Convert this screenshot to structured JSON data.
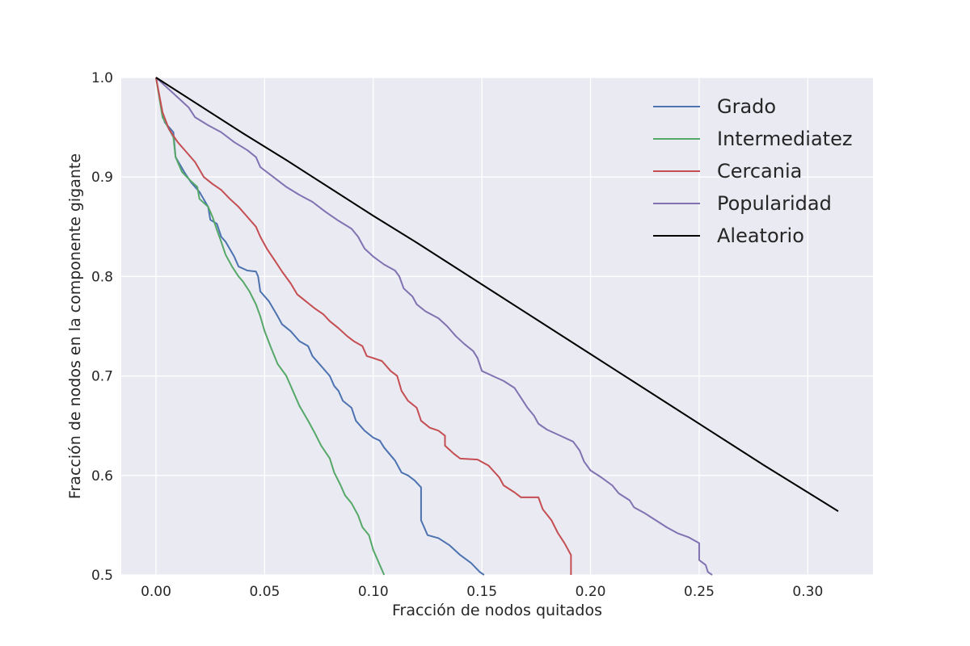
{
  "chart_data": {
    "type": "line",
    "xlabel": "Fracción de nodos quitados",
    "ylabel": "Fracción de nodos en la componente gigante",
    "xlim": [
      -0.016,
      0.33
    ],
    "ylim": [
      0.5,
      1.0
    ],
    "x_ticks": [
      0.0,
      0.05,
      0.1,
      0.15,
      0.2,
      0.25,
      0.3
    ],
    "x_tick_labels": [
      "0.00",
      "0.05",
      "0.10",
      "0.15",
      "0.20",
      "0.25",
      "0.30"
    ],
    "y_ticks": [
      0.5,
      0.6,
      0.7,
      0.8,
      0.9,
      1.0
    ],
    "y_tick_labels": [
      "0.5",
      "0.6",
      "0.7",
      "0.8",
      "0.9",
      "1.0"
    ],
    "grid": true,
    "background": "#eaeaf2",
    "legend_position": "top-right",
    "series": [
      {
        "name": "Grado",
        "color": "#4c72b0",
        "points": [
          [
            0,
            1.0
          ],
          [
            0.002,
            0.975
          ],
          [
            0.004,
            0.955
          ],
          [
            0.008,
            0.945
          ],
          [
            0.009,
            0.92
          ],
          [
            0.013,
            0.905
          ],
          [
            0.016,
            0.895
          ],
          [
            0.02,
            0.885
          ],
          [
            0.024,
            0.87
          ],
          [
            0.025,
            0.857
          ],
          [
            0.028,
            0.853
          ],
          [
            0.03,
            0.84
          ],
          [
            0.032,
            0.835
          ],
          [
            0.036,
            0.82
          ],
          [
            0.038,
            0.81
          ],
          [
            0.042,
            0.806
          ],
          [
            0.046,
            0.805
          ],
          [
            0.047,
            0.8
          ],
          [
            0.048,
            0.785
          ],
          [
            0.052,
            0.775
          ],
          [
            0.056,
            0.76
          ],
          [
            0.058,
            0.752
          ],
          [
            0.062,
            0.745
          ],
          [
            0.066,
            0.735
          ],
          [
            0.07,
            0.73
          ],
          [
            0.072,
            0.72
          ],
          [
            0.076,
            0.71
          ],
          [
            0.08,
            0.7
          ],
          [
            0.082,
            0.69
          ],
          [
            0.084,
            0.685
          ],
          [
            0.086,
            0.675
          ],
          [
            0.09,
            0.668
          ],
          [
            0.092,
            0.655
          ],
          [
            0.096,
            0.645
          ],
          [
            0.1,
            0.638
          ],
          [
            0.103,
            0.635
          ],
          [
            0.105,
            0.628
          ],
          [
            0.11,
            0.615
          ],
          [
            0.113,
            0.603
          ],
          [
            0.116,
            0.6
          ],
          [
            0.119,
            0.595
          ],
          [
            0.122,
            0.588
          ],
          [
            0.122,
            0.555
          ],
          [
            0.125,
            0.54
          ],
          [
            0.13,
            0.537
          ],
          [
            0.135,
            0.53
          ],
          [
            0.14,
            0.52
          ],
          [
            0.145,
            0.512
          ],
          [
            0.149,
            0.503
          ],
          [
            0.151,
            0.5
          ]
        ]
      },
      {
        "name": "Intermediatez",
        "color": "#55a868",
        "points": [
          [
            0,
            1.0
          ],
          [
            0.003,
            0.96
          ],
          [
            0.006,
            0.948
          ],
          [
            0.008,
            0.94
          ],
          [
            0.009,
            0.92
          ],
          [
            0.012,
            0.905
          ],
          [
            0.016,
            0.896
          ],
          [
            0.019,
            0.89
          ],
          [
            0.02,
            0.878
          ],
          [
            0.024,
            0.87
          ],
          [
            0.026,
            0.86
          ],
          [
            0.028,
            0.847
          ],
          [
            0.03,
            0.835
          ],
          [
            0.032,
            0.822
          ],
          [
            0.035,
            0.81
          ],
          [
            0.038,
            0.8
          ],
          [
            0.04,
            0.795
          ],
          [
            0.043,
            0.785
          ],
          [
            0.046,
            0.772
          ],
          [
            0.048,
            0.76
          ],
          [
            0.05,
            0.745
          ],
          [
            0.053,
            0.728
          ],
          [
            0.056,
            0.712
          ],
          [
            0.06,
            0.7
          ],
          [
            0.063,
            0.685
          ],
          [
            0.066,
            0.67
          ],
          [
            0.07,
            0.655
          ],
          [
            0.073,
            0.643
          ],
          [
            0.076,
            0.63
          ],
          [
            0.08,
            0.617
          ],
          [
            0.082,
            0.603
          ],
          [
            0.085,
            0.59
          ],
          [
            0.087,
            0.58
          ],
          [
            0.09,
            0.572
          ],
          [
            0.093,
            0.56
          ],
          [
            0.095,
            0.548
          ],
          [
            0.098,
            0.54
          ],
          [
            0.1,
            0.525
          ],
          [
            0.103,
            0.51
          ],
          [
            0.105,
            0.5
          ]
        ]
      },
      {
        "name": "Cercania",
        "color": "#c44e52",
        "points": [
          [
            0,
            1.0
          ],
          [
            0.003,
            0.965
          ],
          [
            0.006,
            0.948
          ],
          [
            0.01,
            0.935
          ],
          [
            0.014,
            0.925
          ],
          [
            0.018,
            0.915
          ],
          [
            0.022,
            0.9
          ],
          [
            0.026,
            0.893
          ],
          [
            0.03,
            0.887
          ],
          [
            0.034,
            0.878
          ],
          [
            0.038,
            0.87
          ],
          [
            0.042,
            0.86
          ],
          [
            0.046,
            0.85
          ],
          [
            0.048,
            0.84
          ],
          [
            0.051,
            0.828
          ],
          [
            0.055,
            0.815
          ],
          [
            0.058,
            0.805
          ],
          [
            0.062,
            0.793
          ],
          [
            0.065,
            0.782
          ],
          [
            0.069,
            0.775
          ],
          [
            0.073,
            0.768
          ],
          [
            0.077,
            0.762
          ],
          [
            0.08,
            0.755
          ],
          [
            0.084,
            0.748
          ],
          [
            0.088,
            0.74
          ],
          [
            0.091,
            0.735
          ],
          [
            0.095,
            0.73
          ],
          [
            0.097,
            0.72
          ],
          [
            0.1,
            0.718
          ],
          [
            0.104,
            0.715
          ],
          [
            0.108,
            0.705
          ],
          [
            0.111,
            0.7
          ],
          [
            0.113,
            0.685
          ],
          [
            0.116,
            0.675
          ],
          [
            0.12,
            0.668
          ],
          [
            0.122,
            0.655
          ],
          [
            0.126,
            0.648
          ],
          [
            0.13,
            0.645
          ],
          [
            0.133,
            0.64
          ],
          [
            0.133,
            0.63
          ],
          [
            0.137,
            0.622
          ],
          [
            0.14,
            0.617
          ],
          [
            0.148,
            0.616
          ],
          [
            0.153,
            0.61
          ],
          [
            0.158,
            0.598
          ],
          [
            0.16,
            0.59
          ],
          [
            0.165,
            0.583
          ],
          [
            0.168,
            0.578
          ],
          [
            0.176,
            0.578
          ],
          [
            0.178,
            0.566
          ],
          [
            0.182,
            0.555
          ],
          [
            0.185,
            0.542
          ],
          [
            0.188,
            0.532
          ],
          [
            0.191,
            0.52
          ],
          [
            0.191,
            0.5
          ]
        ]
      },
      {
        "name": "Popularidad",
        "color": "#8172b2",
        "points": [
          [
            0,
            1.0
          ],
          [
            0.005,
            0.99
          ],
          [
            0.01,
            0.98
          ],
          [
            0.015,
            0.97
          ],
          [
            0.018,
            0.96
          ],
          [
            0.024,
            0.952
          ],
          [
            0.03,
            0.945
          ],
          [
            0.036,
            0.935
          ],
          [
            0.042,
            0.927
          ],
          [
            0.046,
            0.92
          ],
          [
            0.048,
            0.91
          ],
          [
            0.054,
            0.9
          ],
          [
            0.06,
            0.89
          ],
          [
            0.066,
            0.882
          ],
          [
            0.072,
            0.875
          ],
          [
            0.078,
            0.865
          ],
          [
            0.084,
            0.856
          ],
          [
            0.09,
            0.848
          ],
          [
            0.093,
            0.84
          ],
          [
            0.096,
            0.828
          ],
          [
            0.1,
            0.82
          ],
          [
            0.105,
            0.812
          ],
          [
            0.11,
            0.806
          ],
          [
            0.112,
            0.8
          ],
          [
            0.114,
            0.788
          ],
          [
            0.118,
            0.78
          ],
          [
            0.12,
            0.772
          ],
          [
            0.124,
            0.765
          ],
          [
            0.13,
            0.758
          ],
          [
            0.134,
            0.75
          ],
          [
            0.138,
            0.74
          ],
          [
            0.142,
            0.732
          ],
          [
            0.146,
            0.725
          ],
          [
            0.148,
            0.718
          ],
          [
            0.15,
            0.705
          ],
          [
            0.155,
            0.7
          ],
          [
            0.16,
            0.695
          ],
          [
            0.165,
            0.688
          ],
          [
            0.168,
            0.678
          ],
          [
            0.171,
            0.668
          ],
          [
            0.174,
            0.66
          ],
          [
            0.176,
            0.652
          ],
          [
            0.18,
            0.646
          ],
          [
            0.186,
            0.64
          ],
          [
            0.192,
            0.634
          ],
          [
            0.195,
            0.625
          ],
          [
            0.197,
            0.614
          ],
          [
            0.2,
            0.605
          ],
          [
            0.205,
            0.598
          ],
          [
            0.21,
            0.59
          ],
          [
            0.213,
            0.582
          ],
          [
            0.218,
            0.575
          ],
          [
            0.22,
            0.568
          ],
          [
            0.225,
            0.562
          ],
          [
            0.23,
            0.555
          ],
          [
            0.235,
            0.548
          ],
          [
            0.24,
            0.542
          ],
          [
            0.245,
            0.538
          ],
          [
            0.25,
            0.532
          ],
          [
            0.25,
            0.515
          ],
          [
            0.253,
            0.51
          ],
          [
            0.254,
            0.503
          ],
          [
            0.256,
            0.5
          ]
        ]
      },
      {
        "name": "Aleatorio",
        "color": "#000000",
        "points": [
          [
            0,
            1.0
          ],
          [
            0.02,
            0.972
          ],
          [
            0.04,
            0.944
          ],
          [
            0.06,
            0.917
          ],
          [
            0.08,
            0.889
          ],
          [
            0.1,
            0.861
          ],
          [
            0.12,
            0.834
          ],
          [
            0.14,
            0.806
          ],
          [
            0.16,
            0.778
          ],
          [
            0.18,
            0.75
          ],
          [
            0.2,
            0.722
          ],
          [
            0.22,
            0.694
          ],
          [
            0.24,
            0.666
          ],
          [
            0.26,
            0.638
          ],
          [
            0.28,
            0.61
          ],
          [
            0.3,
            0.583
          ],
          [
            0.314,
            0.564
          ]
        ]
      }
    ]
  }
}
